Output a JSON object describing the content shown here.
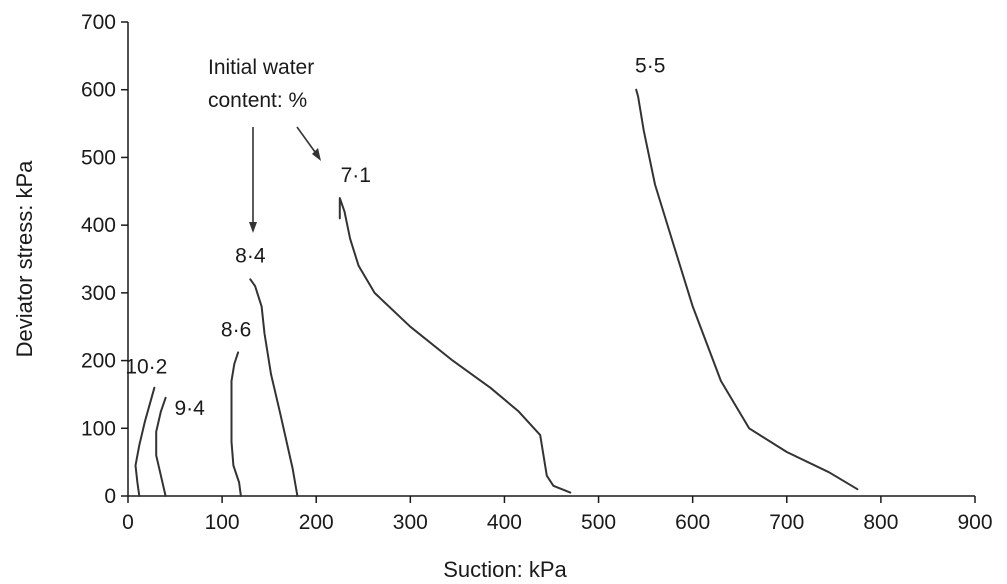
{
  "chart_data": {
    "type": "line",
    "title": "",
    "xlabel": "Suction: kPa",
    "ylabel": "Deviator stress: kPa",
    "xlim": [
      0,
      900
    ],
    "ylim": [
      0,
      700
    ],
    "x_ticks": [
      "0",
      "100",
      "200",
      "300",
      "400",
      "500",
      "600",
      "700",
      "800",
      "900"
    ],
    "y_ticks": [
      "0",
      "100",
      "200",
      "300",
      "400",
      "500",
      "600",
      "700"
    ],
    "grid": false,
    "legend": "none",
    "line_color": "#333333",
    "annotation": {
      "text_lines": [
        "Initial water",
        "content: %"
      ]
    },
    "series": [
      {
        "name": "10·2",
        "points": [
          [
            12,
            0
          ],
          [
            10,
            20
          ],
          [
            8,
            45
          ],
          [
            12,
            75
          ],
          [
            18,
            110
          ],
          [
            24,
            140
          ],
          [
            28,
            160
          ]
        ]
      },
      {
        "name": "9·4",
        "points": [
          [
            40,
            0
          ],
          [
            35,
            30
          ],
          [
            30,
            60
          ],
          [
            30,
            95
          ],
          [
            35,
            125
          ],
          [
            40,
            145
          ]
        ]
      },
      {
        "name": "8·6",
        "points": [
          [
            120,
            0
          ],
          [
            118,
            20
          ],
          [
            112,
            45
          ],
          [
            110,
            80
          ],
          [
            110,
            120
          ],
          [
            110,
            170
          ],
          [
            113,
            195
          ],
          [
            117,
            212
          ]
        ]
      },
      {
        "name": "8·4",
        "points": [
          [
            180,
            0
          ],
          [
            175,
            40
          ],
          [
            162,
            120
          ],
          [
            152,
            180
          ],
          [
            145,
            240
          ],
          [
            142,
            280
          ],
          [
            135,
            310
          ],
          [
            130,
            320
          ]
        ]
      },
      {
        "name": "7·1",
        "points": [
          [
            470,
            5
          ],
          [
            452,
            15
          ],
          [
            445,
            30
          ],
          [
            438,
            90
          ],
          [
            415,
            125
          ],
          [
            385,
            160
          ],
          [
            345,
            200
          ],
          [
            300,
            250
          ],
          [
            262,
            300
          ],
          [
            245,
            340
          ],
          [
            236,
            380
          ],
          [
            230,
            420
          ],
          [
            225,
            440
          ],
          [
            225,
            410
          ]
        ]
      },
      {
        "name": "5·5",
        "points": [
          [
            775,
            10
          ],
          [
            745,
            35
          ],
          [
            700,
            65
          ],
          [
            660,
            100
          ],
          [
            630,
            170
          ],
          [
            600,
            280
          ],
          [
            580,
            370
          ],
          [
            560,
            460
          ],
          [
            548,
            540
          ],
          [
            542,
            590
          ],
          [
            540,
            600
          ]
        ]
      }
    ]
  }
}
